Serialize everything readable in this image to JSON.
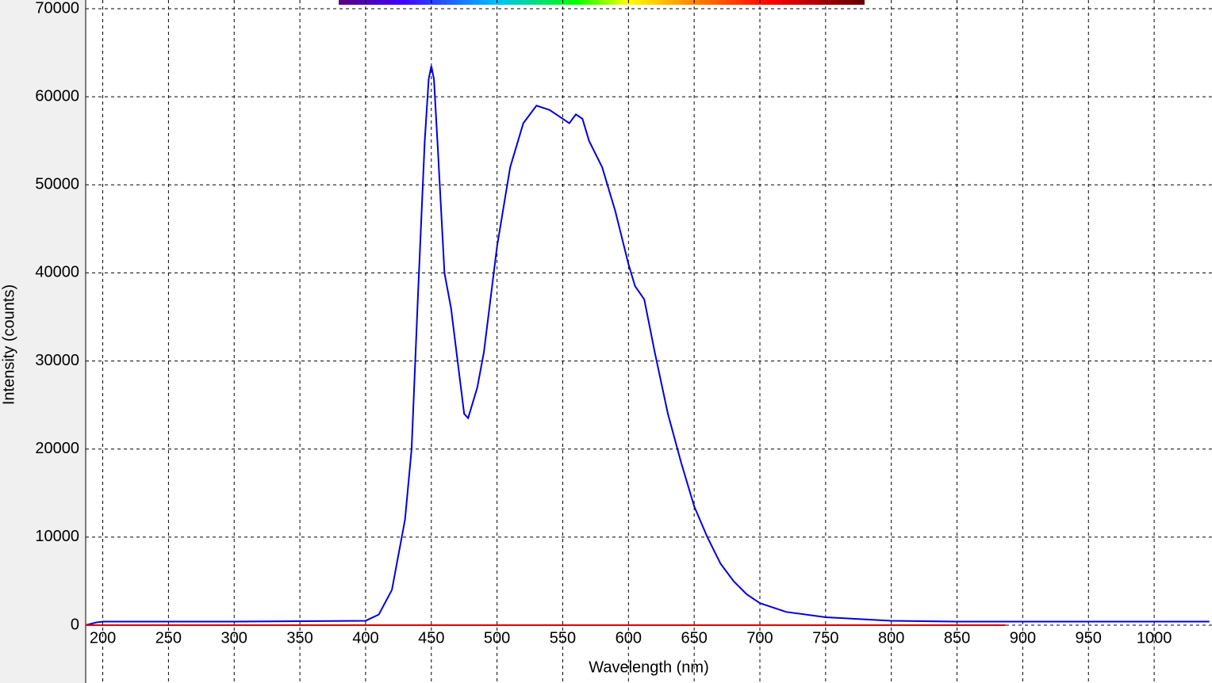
{
  "chart_data": {
    "type": "line",
    "x_label": "Wavelength (nm)",
    "y_label": "Intensity (counts)",
    "xlim": [
      187,
      1044
    ],
    "ylim": [
      0,
      70000
    ],
    "xticks": [
      200,
      250,
      300,
      350,
      400,
      450,
      500,
      550,
      600,
      650,
      700,
      750,
      800,
      850,
      900,
      950,
      1000
    ],
    "yticks": [
      0,
      10000,
      20000,
      30000,
      40000,
      50000,
      60000,
      70000
    ],
    "grid": true,
    "series": [
      {
        "color": "#0000e0",
        "x": [
          187,
          195,
          200,
          300,
          350,
          400,
          410,
          420,
          430,
          435,
          440,
          445,
          448,
          450,
          452,
          455,
          460,
          465,
          470,
          475,
          478,
          485,
          490,
          500,
          510,
          520,
          530,
          540,
          550,
          555,
          560,
          565,
          570,
          580,
          590,
          600,
          605,
          612,
          620,
          630,
          640,
          650,
          660,
          670,
          680,
          690,
          700,
          720,
          750,
          800,
          850,
          900,
          1000,
          1042
        ],
        "values": [
          0,
          300,
          400,
          400,
          450,
          500,
          1200,
          4000,
          12000,
          20000,
          38000,
          55000,
          62000,
          63500,
          62000,
          54000,
          40000,
          36000,
          30000,
          24000,
          23500,
          27000,
          31000,
          43000,
          52000,
          57000,
          59000,
          58500,
          57500,
          57000,
          58000,
          57500,
          55000,
          52000,
          47000,
          41000,
          38500,
          37000,
          31000,
          24000,
          18500,
          13500,
          10000,
          7000,
          5000,
          3500,
          2500,
          1500,
          900,
          500,
          400,
          400,
          400,
          400
        ]
      },
      {
        "color": "#e00000",
        "x": [
          187,
          887
        ],
        "values": [
          0,
          0
        ]
      }
    ]
  }
}
